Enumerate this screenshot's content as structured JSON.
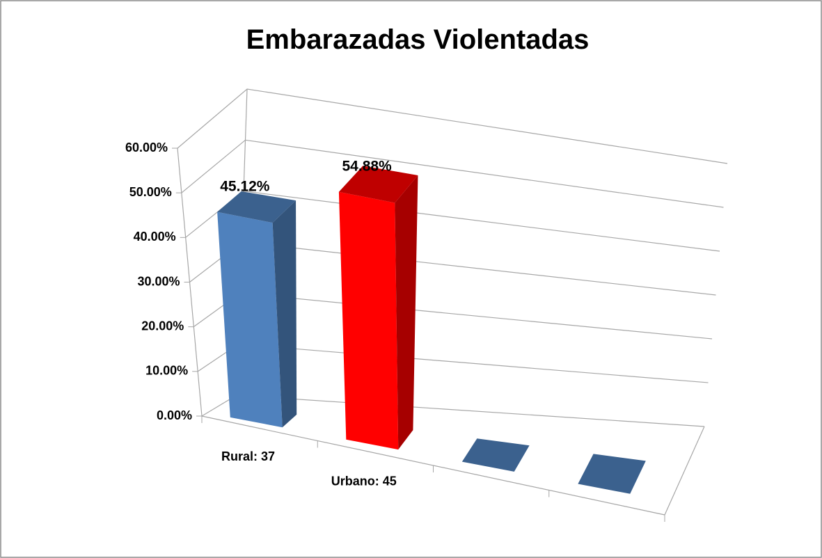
{
  "chart_data": {
    "type": "bar3d",
    "title": "Embarazadas Violentadas",
    "categories": [
      "Rural: 37",
      "Urbano: 45",
      null,
      null
    ],
    "values": [
      45.12,
      54.88,
      0,
      0
    ],
    "value_labels": [
      "45.12%",
      "54.88%",
      null,
      null
    ],
    "colors": [
      "#4f81bd",
      "#ff0000",
      "#4f81bd",
      "#4f81bd"
    ],
    "ylim": [
      0,
      60
    ],
    "yticks": [
      {
        "value": 0,
        "label": "0.00%"
      },
      {
        "value": 10,
        "label": "10.00%"
      },
      {
        "value": 20,
        "label": "20.00%"
      },
      {
        "value": 30,
        "label": "30.00%"
      },
      {
        "value": 40,
        "label": "40.00%"
      },
      {
        "value": 50,
        "label": "50.00%"
      },
      {
        "value": 60,
        "label": "60.00%"
      }
    ],
    "grid": true
  }
}
